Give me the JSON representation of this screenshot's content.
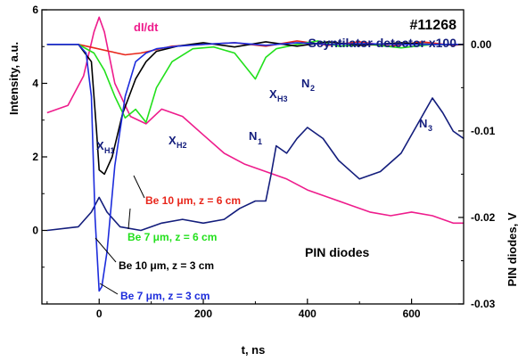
{
  "chart_data": {
    "type": "line",
    "title": "#11268",
    "subtitle": "Scyntilator detector x100",
    "xlabel": "t, ns",
    "ylabel_left": "Intensity, a.u.",
    "ylabel_right": "PIN diodes, V",
    "xlim": [
      -110,
      700
    ],
    "ylim_left": [
      -2,
      6
    ],
    "ylim_right": [
      -0.03,
      0.004
    ],
    "x_ticks": [
      0,
      200,
      400,
      600
    ],
    "y_left_ticks": [
      0,
      2,
      4,
      6
    ],
    "y_right_ticks": [
      0.0,
      -0.01,
      -0.02,
      -0.03
    ],
    "y_right_tick_labels": [
      "0.00",
      "-0.01",
      "-0.02",
      "-0.03"
    ],
    "grid": false,
    "panel_label": "PIN diodes",
    "colors": {
      "magenta": "#ee1c8c",
      "navy": "#131d7c",
      "red": "#e8261b",
      "green": "#22e01c",
      "black": "#000000",
      "blue": "#1c2cdc"
    },
    "series": [
      {
        "name": "dI/dt",
        "axis": "left",
        "color": "#ee1c8c",
        "x": [
          -100,
          -60,
          -30,
          -10,
          0,
          10,
          30,
          60,
          90,
          120,
          160,
          200,
          240,
          280,
          320,
          360,
          400,
          440,
          480,
          520,
          560,
          600,
          640,
          680,
          700
        ],
        "y": [
          3.2,
          3.4,
          4.2,
          5.4,
          5.8,
          5.4,
          4.0,
          3.1,
          2.9,
          3.3,
          3.1,
          2.6,
          2.1,
          1.8,
          1.6,
          1.4,
          1.1,
          0.9,
          0.7,
          0.5,
          0.4,
          0.5,
          0.4,
          0.2,
          0.2
        ]
      },
      {
        "name": "Scyntilator detector x100",
        "axis": "left",
        "color": "#131d7c",
        "x": [
          -100,
          -40,
          -15,
          0,
          15,
          40,
          80,
          120,
          160,
          200,
          240,
          270,
          300,
          320,
          330,
          340,
          360,
          380,
          400,
          430,
          460,
          500,
          540,
          580,
          620,
          640,
          660,
          680,
          700
        ],
        "y": [
          0.0,
          0.1,
          0.5,
          0.9,
          0.5,
          0.1,
          0.0,
          0.2,
          0.3,
          0.2,
          0.3,
          0.6,
          0.8,
          0.8,
          1.5,
          2.3,
          2.1,
          2.5,
          2.8,
          2.5,
          1.9,
          1.4,
          1.6,
          2.1,
          3.1,
          3.6,
          3.2,
          2.7,
          2.5
        ]
      },
      {
        "name": "Be 10 μm, z = 6 cm",
        "axis": "right",
        "color": "#e8261b",
        "x": [
          -100,
          -40,
          -10,
          20,
          50,
          80,
          110,
          140,
          200,
          260,
          320,
          380,
          440,
          500,
          560,
          620,
          680,
          700
        ],
        "y": [
          0.0,
          0.0,
          -0.0004,
          -0.0008,
          -0.0012,
          -0.001,
          -0.0006,
          -0.0002,
          0.0,
          0.0002,
          -0.0002,
          0.0004,
          -0.0001,
          0.0003,
          -0.0002,
          0.0003,
          -0.0001,
          0.0
        ]
      },
      {
        "name": "Be 7 μm, z = 6 cm",
        "axis": "right",
        "color": "#22e01c",
        "x": [
          -100,
          -40,
          -10,
          10,
          30,
          50,
          70,
          90,
          110,
          140,
          180,
          220,
          260,
          300,
          320,
          340,
          380,
          420,
          460,
          520,
          580,
          640,
          700
        ],
        "y": [
          0.0,
          0.0,
          -0.001,
          -0.003,
          -0.006,
          -0.0085,
          -0.0075,
          -0.009,
          -0.005,
          -0.002,
          -0.0005,
          -0.0003,
          -0.001,
          -0.004,
          -0.0015,
          -0.0005,
          0.0,
          0.0004,
          -0.0002,
          0.0,
          -0.0004,
          0.0,
          0.0
        ]
      },
      {
        "name": "Be 10 μm, z = 3 cm",
        "axis": "right",
        "color": "#000000",
        "x": [
          -100,
          -40,
          -15,
          -5,
          0,
          10,
          25,
          45,
          70,
          90,
          110,
          150,
          200,
          260,
          320,
          380,
          440,
          500,
          580,
          640,
          700
        ],
        "y": [
          0.0,
          0.0,
          -0.002,
          -0.01,
          -0.0145,
          -0.015,
          -0.013,
          -0.008,
          -0.004,
          -0.002,
          -0.0008,
          -0.0002,
          0.0002,
          -0.0003,
          0.0003,
          -0.0002,
          0.0003,
          -0.0001,
          0.0002,
          0.0,
          0.0
        ]
      },
      {
        "name": "Be 7 μm, z = 3 cm",
        "axis": "right",
        "color": "#1c2cdc",
        "x": [
          -100,
          -40,
          -25,
          -15,
          -8,
          0,
          5,
          15,
          30,
          50,
          70,
          90,
          110,
          150,
          200,
          260,
          320,
          380,
          440,
          500,
          580,
          700
        ],
        "y": [
          0.0,
          0.0,
          -0.001,
          -0.006,
          -0.02,
          -0.0285,
          -0.028,
          -0.024,
          -0.014,
          -0.006,
          -0.002,
          -0.001,
          -0.0005,
          -0.0002,
          0.0,
          0.0002,
          -0.0001,
          0.0002,
          0.0,
          0.0001,
          0.0,
          0.0
        ]
      }
    ],
    "annotations": [
      {
        "text": "dI/dt",
        "color": "#ee1c8c"
      },
      {
        "text": "X",
        "sub": "H1",
        "color": "#131d7c"
      },
      {
        "text": "X",
        "sub": "H2",
        "color": "#131d7c"
      },
      {
        "text": "X",
        "sub": "H3",
        "color": "#131d7c"
      },
      {
        "text": "N",
        "sub": "1",
        "color": "#131d7c"
      },
      {
        "text": "N",
        "sub": "2",
        "color": "#131d7c"
      },
      {
        "text": "N",
        "sub": "3",
        "color": "#131d7c"
      },
      {
        "text": "Be 10 μm, z = 6 cm",
        "color": "#e8261b"
      },
      {
        "text": "Be 7 μm, z = 6 cm",
        "color": "#22e01c"
      },
      {
        "text": "Be 10 μm, z = 3 cm",
        "color": "#000000"
      },
      {
        "text": "Be 7 μm, z = 3 cm",
        "color": "#1c2cdc"
      }
    ]
  }
}
